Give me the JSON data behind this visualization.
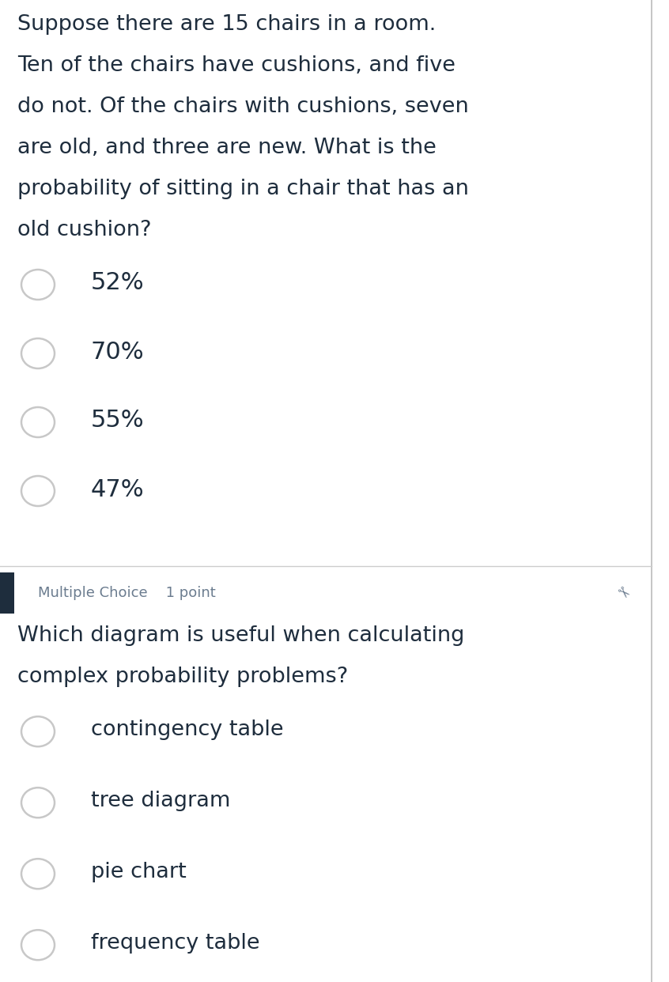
{
  "bg_color": "#ffffff",
  "divider_color": "#cccccc",
  "q1_text_lines": [
    "Suppose there are 15 chairs in a room.",
    "Ten of the chairs have cushions, and five",
    "do not. Of the chairs with cushions, seven",
    "are old, and three are new. What is the",
    "probability of sitting in a chair that has an",
    "old cushion?"
  ],
  "q1_options": [
    "52%",
    "70%",
    "55%",
    "47%"
  ],
  "q1_text_color": "#1e2d3d",
  "q1_option_color": "#1e2d3d",
  "q1_text_fontsize": 19.5,
  "q1_option_fontsize": 22,
  "meta_label": "Multiple Choice    1 point",
  "meta_color": "#6b7c8f",
  "meta_fontsize": 13,
  "q2_text_lines": [
    "Which diagram is useful when calculating",
    "complex probability problems?"
  ],
  "q2_options": [
    "contingency table",
    "tree diagram",
    "pie chart",
    "frequency table"
  ],
  "q2_text_color": "#1e2d3d",
  "q2_option_color": "#1e2d3d",
  "q2_text_fontsize": 19.5,
  "q2_option_fontsize": 19.5,
  "accent_bar_color": "#1e2d3d",
  "right_border_color": "#bbbbbb",
  "circle_edge_color": "#c8c8c8",
  "q1_circle_colors": [
    "#c8c8c8",
    "#c8c8c8",
    "#c8c8c8",
    "#c8c8c8"
  ],
  "q2_circle_colors": [
    "#c8c8c8",
    "#c8c8c8",
    "#c8c8c8",
    "#c8c8c8"
  ],
  "fig_width": 8.46,
  "fig_height": 12.42,
  "dpi": 100
}
